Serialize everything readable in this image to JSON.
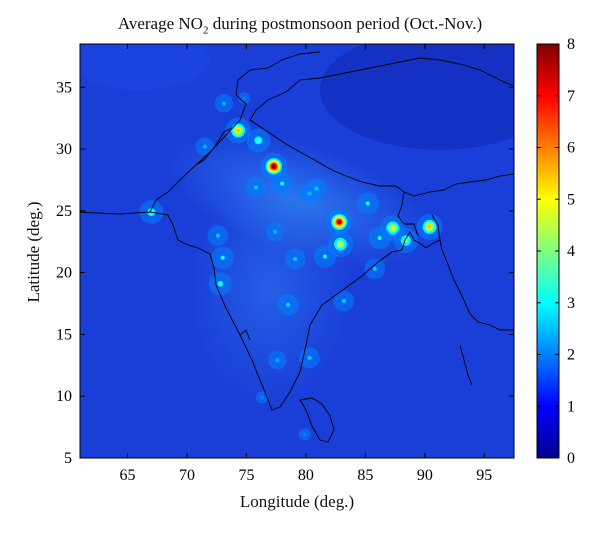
{
  "title": {
    "prefix": "Average NO",
    "subscript": "2",
    "suffix": " during postmonsoon period (Oct.-Nov.)"
  },
  "axes": {
    "xlabel": "Longitude (deg.)",
    "ylabel": "Latitude (deg.)",
    "xlim": [
      61,
      97.5
    ],
    "ylim": [
      5,
      38.5
    ],
    "xticks": [
      65,
      70,
      75,
      80,
      85,
      90,
      95
    ],
    "yticks": [
      5,
      10,
      15,
      20,
      25,
      30,
      35
    ]
  },
  "colorbar": {
    "range": [
      0,
      8
    ],
    "ticks": [
      0,
      1,
      2,
      3,
      4,
      5,
      6,
      7,
      8
    ],
    "colormap": "jet"
  },
  "colors": {
    "background_field": "#1a3fd8",
    "high": "#8b0000",
    "boundary": "#000000"
  },
  "hotspots": [
    {
      "lon": 77.3,
      "lat": 28.6,
      "value": 8
    },
    {
      "lon": 82.8,
      "lat": 24.1,
      "value": 7.5
    },
    {
      "lon": 74.3,
      "lat": 31.5,
      "value": 5.5
    },
    {
      "lon": 90.4,
      "lat": 23.7,
      "value": 5.5
    },
    {
      "lon": 87.3,
      "lat": 23.6,
      "value": 5
    },
    {
      "lon": 82.9,
      "lat": 22.3,
      "value": 4.8
    },
    {
      "lon": 88.4,
      "lat": 22.6,
      "value": 4
    },
    {
      "lon": 67.0,
      "lat": 24.9,
      "value": 3.5
    },
    {
      "lon": 72.8,
      "lat": 19.1,
      "value": 3.2
    },
    {
      "lon": 73.0,
      "lat": 21.2,
      "value": 3
    },
    {
      "lon": 80.3,
      "lat": 26.4,
      "value": 3
    },
    {
      "lon": 76.0,
      "lat": 30.7,
      "value": 3.5
    },
    {
      "lon": 78.0,
      "lat": 27.2,
      "value": 3
    },
    {
      "lon": 75.8,
      "lat": 26.9,
      "value": 2.6
    },
    {
      "lon": 72.6,
      "lat": 23.0,
      "value": 2.6
    },
    {
      "lon": 79.1,
      "lat": 21.1,
      "value": 2.6
    },
    {
      "lon": 78.5,
      "lat": 17.4,
      "value": 2.8
    },
    {
      "lon": 80.3,
      "lat": 13.1,
      "value": 2.6
    },
    {
      "lon": 77.6,
      "lat": 12.9,
      "value": 2.4
    },
    {
      "lon": 85.2,
      "lat": 25.6,
      "value": 3
    },
    {
      "lon": 81.6,
      "lat": 21.3,
      "value": 3
    },
    {
      "lon": 86.2,
      "lat": 22.8,
      "value": 3
    },
    {
      "lon": 85.8,
      "lat": 20.3,
      "value": 2.6
    },
    {
      "lon": 83.2,
      "lat": 17.7,
      "value": 2.6
    },
    {
      "lon": 77.4,
      "lat": 23.3,
      "value": 2.4
    },
    {
      "lon": 80.9,
      "lat": 26.8,
      "value": 2.6
    },
    {
      "lon": 71.5,
      "lat": 30.2,
      "value": 2.4
    },
    {
      "lon": 73.1,
      "lat": 33.7,
      "value": 2.4
    },
    {
      "lon": 74.8,
      "lat": 34.1,
      "value": 2
    },
    {
      "lon": 76.3,
      "lat": 9.9,
      "value": 2
    },
    {
      "lon": 79.9,
      "lat": 6.9,
      "value": 2
    }
  ]
}
